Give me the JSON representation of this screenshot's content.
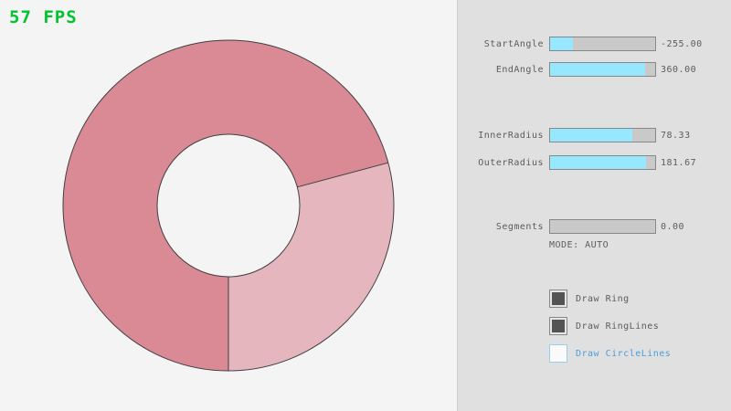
{
  "fps": {
    "text": "57 FPS",
    "color": "#00c42e"
  },
  "ring": {
    "start_angle": -255.0,
    "end_angle": 360.0,
    "inner_radius": 78.33,
    "outer_radius": 181.67,
    "segments": 0.0,
    "color_primary": "#d98a95",
    "color_secondary": "#e6b6be",
    "outline_color": "#3f3f3f"
  },
  "panel": {
    "sliders": [
      {
        "label": "StartAngle",
        "value": "-255.00",
        "fill_pct": 22
      },
      {
        "label": "EndAngle",
        "value": "360.00",
        "fill_pct": 90
      },
      {
        "label": "InnerRadius",
        "value": "78.33",
        "fill_pct": 78
      },
      {
        "label": "OuterRadius",
        "value": "181.67",
        "fill_pct": 91
      },
      {
        "label": "Segments",
        "value": "0.00",
        "fill_pct": 0
      }
    ],
    "mode_label": "MODE: AUTO",
    "checkboxes": [
      {
        "label": "Draw Ring",
        "checked": true
      },
      {
        "label": "Draw RingLines",
        "checked": true
      },
      {
        "label": "Draw CircleLines",
        "checked": false
      }
    ]
  }
}
